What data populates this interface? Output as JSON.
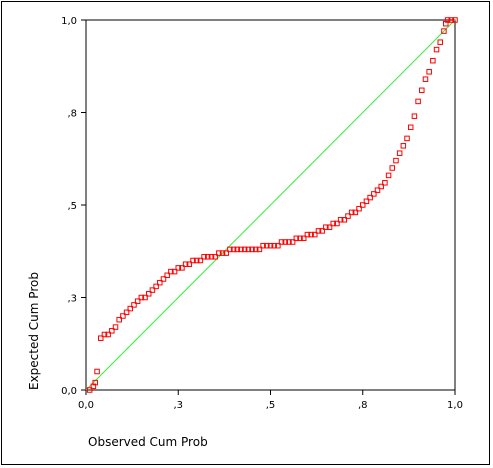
{
  "chart_data": {
    "type": "scatter",
    "title": "",
    "xlabel": "Observed Cum Prob",
    "ylabel": "Expected Cum Prob",
    "xlim": [
      0,
      1
    ],
    "ylim": [
      0,
      1
    ],
    "x_ticks": [
      0,
      0.25,
      0.5,
      0.75,
      1
    ],
    "y_ticks": [
      0,
      0.25,
      0.5,
      0.75,
      1
    ],
    "x_tick_labels": [
      "0,0",
      ",3",
      ",5",
      ",8",
      "1,0"
    ],
    "y_tick_labels": [
      "0,0",
      ",3",
      ",5",
      ",8",
      "1,0"
    ],
    "grid": false,
    "reference_line": {
      "from": [
        0,
        0
      ],
      "to": [
        1,
        1
      ],
      "color": "#33ee33"
    },
    "marker_color": "#ff0000",
    "series": [
      {
        "values_xy": [
          [
            0.01,
            0.0
          ],
          [
            0.02,
            0.01
          ],
          [
            0.025,
            0.02
          ],
          [
            0.03,
            0.05
          ],
          [
            0.04,
            0.14
          ],
          [
            0.05,
            0.15
          ],
          [
            0.06,
            0.15
          ],
          [
            0.07,
            0.16
          ],
          [
            0.08,
            0.17
          ],
          [
            0.09,
            0.19
          ],
          [
            0.1,
            0.2
          ],
          [
            0.11,
            0.21
          ],
          [
            0.12,
            0.22
          ],
          [
            0.13,
            0.23
          ],
          [
            0.14,
            0.24
          ],
          [
            0.15,
            0.25
          ],
          [
            0.16,
            0.25
          ],
          [
            0.17,
            0.26
          ],
          [
            0.18,
            0.27
          ],
          [
            0.19,
            0.28
          ],
          [
            0.2,
            0.29
          ],
          [
            0.21,
            0.3
          ],
          [
            0.22,
            0.31
          ],
          [
            0.23,
            0.32
          ],
          [
            0.24,
            0.32
          ],
          [
            0.25,
            0.33
          ],
          [
            0.26,
            0.33
          ],
          [
            0.27,
            0.34
          ],
          [
            0.28,
            0.34
          ],
          [
            0.29,
            0.35
          ],
          [
            0.3,
            0.35
          ],
          [
            0.31,
            0.35
          ],
          [
            0.32,
            0.36
          ],
          [
            0.33,
            0.36
          ],
          [
            0.34,
            0.36
          ],
          [
            0.35,
            0.36
          ],
          [
            0.36,
            0.37
          ],
          [
            0.37,
            0.37
          ],
          [
            0.38,
            0.37
          ],
          [
            0.39,
            0.38
          ],
          [
            0.4,
            0.38
          ],
          [
            0.41,
            0.38
          ],
          [
            0.42,
            0.38
          ],
          [
            0.43,
            0.38
          ],
          [
            0.44,
            0.38
          ],
          [
            0.45,
            0.38
          ],
          [
            0.46,
            0.38
          ],
          [
            0.47,
            0.38
          ],
          [
            0.48,
            0.39
          ],
          [
            0.49,
            0.39
          ],
          [
            0.5,
            0.39
          ],
          [
            0.51,
            0.39
          ],
          [
            0.52,
            0.39
          ],
          [
            0.53,
            0.4
          ],
          [
            0.54,
            0.4
          ],
          [
            0.55,
            0.4
          ],
          [
            0.56,
            0.4
          ],
          [
            0.57,
            0.41
          ],
          [
            0.58,
            0.41
          ],
          [
            0.59,
            0.41
          ],
          [
            0.6,
            0.42
          ],
          [
            0.61,
            0.42
          ],
          [
            0.62,
            0.42
          ],
          [
            0.63,
            0.43
          ],
          [
            0.64,
            0.43
          ],
          [
            0.65,
            0.44
          ],
          [
            0.66,
            0.44
          ],
          [
            0.67,
            0.45
          ],
          [
            0.68,
            0.45
          ],
          [
            0.69,
            0.46
          ],
          [
            0.7,
            0.46
          ],
          [
            0.71,
            0.47
          ],
          [
            0.72,
            0.48
          ],
          [
            0.73,
            0.48
          ],
          [
            0.74,
            0.49
          ],
          [
            0.75,
            0.5
          ],
          [
            0.76,
            0.51
          ],
          [
            0.77,
            0.52
          ],
          [
            0.78,
            0.53
          ],
          [
            0.79,
            0.54
          ],
          [
            0.8,
            0.55
          ],
          [
            0.81,
            0.56
          ],
          [
            0.82,
            0.58
          ],
          [
            0.83,
            0.6
          ],
          [
            0.84,
            0.62
          ],
          [
            0.85,
            0.64
          ],
          [
            0.86,
            0.66
          ],
          [
            0.87,
            0.68
          ],
          [
            0.88,
            0.71
          ],
          [
            0.89,
            0.74
          ],
          [
            0.9,
            0.78
          ],
          [
            0.91,
            0.81
          ],
          [
            0.92,
            0.84
          ],
          [
            0.93,
            0.86
          ],
          [
            0.94,
            0.89
          ],
          [
            0.95,
            0.92
          ],
          [
            0.96,
            0.94
          ],
          [
            0.97,
            0.97
          ],
          [
            0.975,
            0.99
          ],
          [
            0.98,
            1.0
          ],
          [
            0.99,
            1.0
          ],
          [
            1.0,
            1.0
          ]
        ]
      }
    ]
  }
}
